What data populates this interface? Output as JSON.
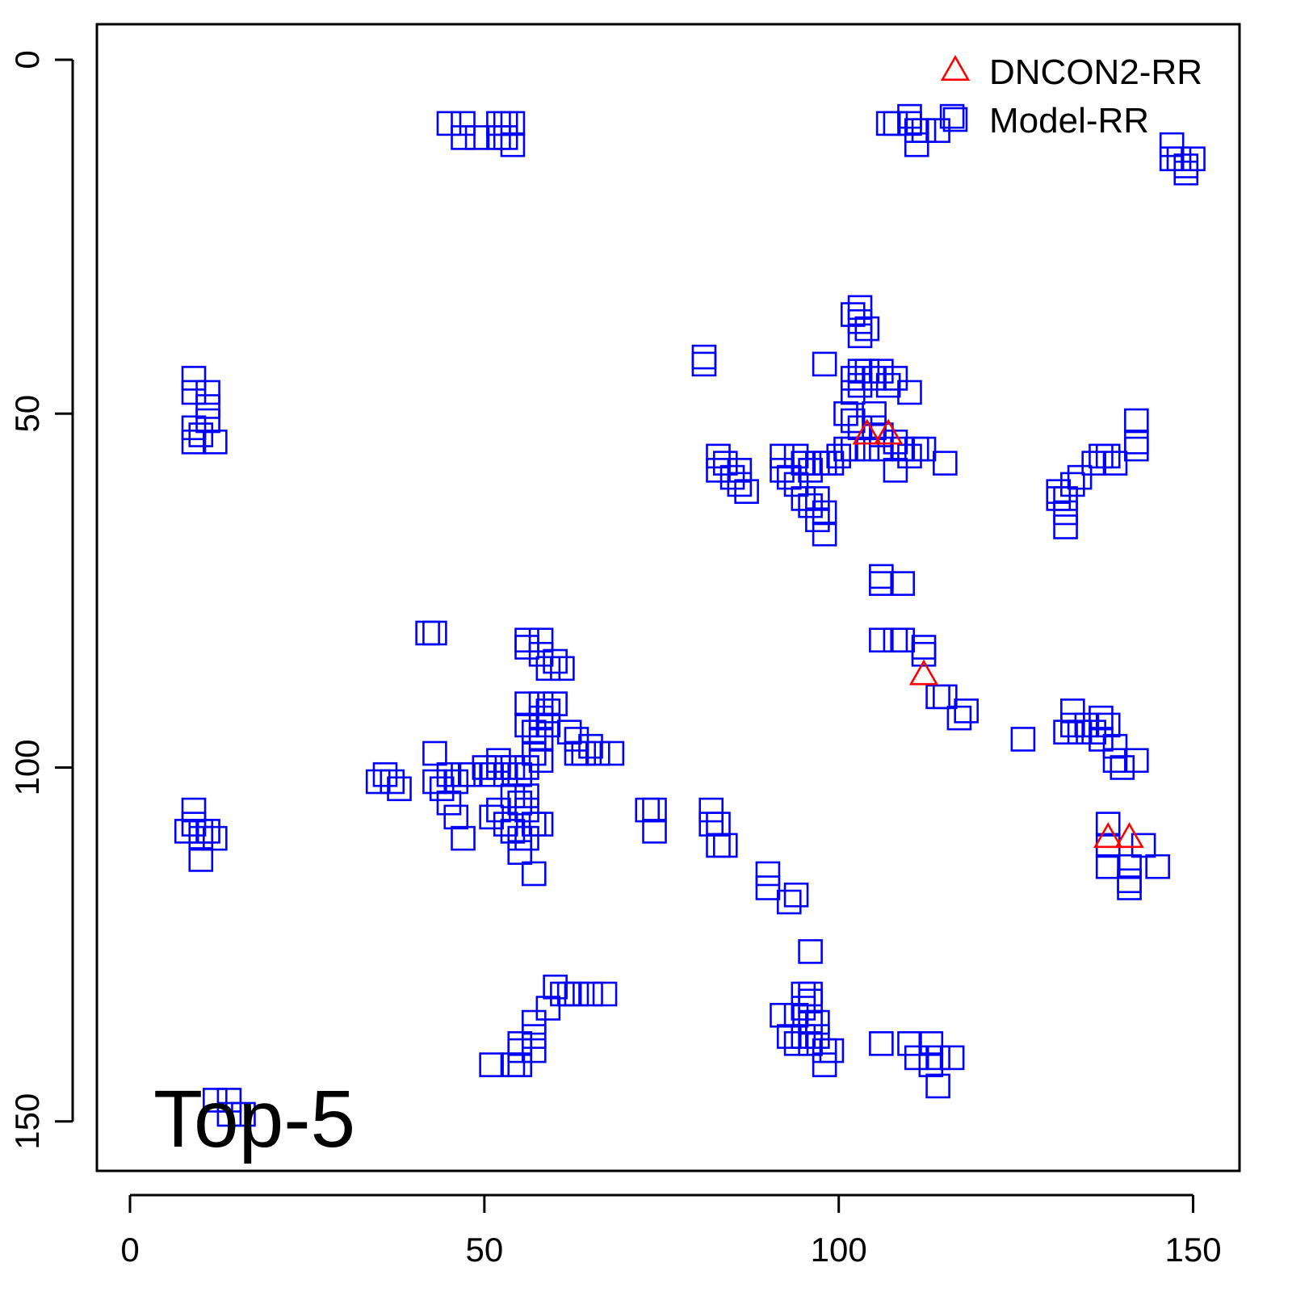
{
  "chart_data": {
    "type": "scatter",
    "title": "",
    "xlabel": "",
    "ylabel": "",
    "xlim": [
      -5,
      157
    ],
    "ylim": [
      155,
      -5
    ],
    "y_axis_reversed": true,
    "x_ticks": [
      0,
      50,
      100,
      150
    ],
    "y_ticks": [
      0,
      50,
      100,
      150
    ],
    "x_tick_labels": [
      "0",
      "50",
      "100",
      "150"
    ],
    "y_tick_labels": [
      "0",
      "50",
      "100",
      "150"
    ],
    "grid": false,
    "legend_position": "top-right",
    "annotation": "Top-5",
    "series": [
      {
        "name": "DNCON2-RR",
        "marker": "triangle",
        "color": "#ff0000",
        "points": [
          [
            104,
            53
          ],
          [
            107,
            53
          ],
          [
            112,
            87
          ],
          [
            138,
            110
          ],
          [
            141,
            110
          ]
        ]
      },
      {
        "name": "Model-RR",
        "marker": "square",
        "color": "#0000ff",
        "points": [
          [
            45,
            9
          ],
          [
            47,
            9
          ],
          [
            52,
            9
          ],
          [
            53,
            9
          ],
          [
            54,
            9
          ],
          [
            47,
            11
          ],
          [
            49,
            11
          ],
          [
            52,
            11
          ],
          [
            53,
            11
          ],
          [
            54,
            12
          ],
          [
            107,
            9
          ],
          [
            108,
            9
          ],
          [
            110,
            9
          ],
          [
            110,
            8
          ],
          [
            111,
            10
          ],
          [
            111,
            12
          ],
          [
            112,
            10
          ],
          [
            114,
            10
          ],
          [
            116,
            8
          ],
          [
            147,
            12
          ],
          [
            147,
            14
          ],
          [
            148,
            14
          ],
          [
            149,
            15
          ],
          [
            150,
            14
          ],
          [
            149,
            16
          ],
          [
            9,
            45
          ],
          [
            9,
            47
          ],
          [
            11,
            47
          ],
          [
            11,
            49
          ],
          [
            11,
            51
          ],
          [
            9,
            52
          ],
          [
            9,
            54
          ],
          [
            10,
            53
          ],
          [
            12,
            54
          ],
          [
            103,
            35
          ],
          [
            102,
            36
          ],
          [
            103,
            37
          ],
          [
            104,
            38
          ],
          [
            103,
            39
          ],
          [
            81,
            42
          ],
          [
            81,
            43
          ],
          [
            98,
            43
          ],
          [
            102,
            45
          ],
          [
            103,
            44
          ],
          [
            104,
            44
          ],
          [
            105,
            45
          ],
          [
            106,
            44
          ],
          [
            107,
            46
          ],
          [
            108,
            45
          ],
          [
            102,
            47
          ],
          [
            103,
            46
          ],
          [
            110,
            47
          ],
          [
            101,
            50
          ],
          [
            102,
            51
          ],
          [
            103,
            52
          ],
          [
            105,
            52
          ],
          [
            102,
            55
          ],
          [
            104,
            55
          ],
          [
            106,
            55
          ],
          [
            108,
            54
          ],
          [
            109,
            55
          ],
          [
            110,
            56
          ],
          [
            111,
            55
          ],
          [
            112,
            55
          ],
          [
            115,
            57
          ],
          [
            108,
            58
          ],
          [
            106,
            53
          ],
          [
            105,
            50
          ],
          [
            92,
            56
          ],
          [
            92,
            58
          ],
          [
            93,
            59
          ],
          [
            94,
            56
          ],
          [
            95,
            57
          ],
          [
            96,
            58
          ],
          [
            97,
            57
          ],
          [
            98,
            57
          ],
          [
            99,
            57
          ],
          [
            100,
            56
          ],
          [
            101,
            55
          ],
          [
            94,
            60
          ],
          [
            95,
            62
          ],
          [
            96,
            63
          ],
          [
            97,
            62
          ],
          [
            97,
            65
          ],
          [
            98,
            64
          ],
          [
            98,
            67
          ],
          [
            83,
            56
          ],
          [
            83,
            58
          ],
          [
            84,
            57
          ],
          [
            85,
            59
          ],
          [
            86,
            58
          ],
          [
            86,
            60
          ],
          [
            87,
            61
          ],
          [
            131,
            61
          ],
          [
            131,
            62
          ],
          [
            132,
            62
          ],
          [
            132,
            64
          ],
          [
            132,
            66
          ],
          [
            133,
            60
          ],
          [
            134,
            59
          ],
          [
            136,
            57
          ],
          [
            137,
            56
          ],
          [
            138,
            56
          ],
          [
            139,
            57
          ],
          [
            142,
            51
          ],
          [
            142,
            54
          ],
          [
            142,
            55
          ],
          [
            106,
            73
          ],
          [
            106,
            74
          ],
          [
            109,
            74
          ],
          [
            106,
            82
          ],
          [
            108,
            82
          ],
          [
            109,
            82
          ],
          [
            112,
            83
          ],
          [
            112,
            84
          ],
          [
            114,
            90
          ],
          [
            115,
            90
          ],
          [
            117,
            93
          ],
          [
            118,
            92
          ],
          [
            126,
            96
          ],
          [
            132,
            95
          ],
          [
            133,
            94
          ],
          [
            133,
            92
          ],
          [
            134,
            95
          ],
          [
            135,
            94
          ],
          [
            136,
            95
          ],
          [
            137,
            93
          ],
          [
            137,
            96
          ],
          [
            138,
            94
          ],
          [
            139,
            97
          ],
          [
            139,
            99
          ],
          [
            140,
            100
          ],
          [
            142,
            99
          ],
          [
            42,
            81
          ],
          [
            43,
            81
          ],
          [
            56,
            82
          ],
          [
            56,
            83
          ],
          [
            58,
            82
          ],
          [
            58,
            84
          ],
          [
            59,
            86
          ],
          [
            60,
            85
          ],
          [
            61,
            86
          ],
          [
            56,
            91
          ],
          [
            58,
            91
          ],
          [
            59,
            92
          ],
          [
            60,
            91
          ],
          [
            58,
            93
          ],
          [
            59,
            94
          ],
          [
            56,
            94
          ],
          [
            57,
            95
          ],
          [
            58,
            96
          ],
          [
            57,
            98
          ],
          [
            58,
            99
          ],
          [
            62,
            95
          ],
          [
            63,
            96
          ],
          [
            63,
            98
          ],
          [
            64,
            98
          ],
          [
            65,
            97
          ],
          [
            66,
            98
          ],
          [
            68,
            98
          ],
          [
            43,
            98
          ],
          [
            43,
            102
          ],
          [
            44,
            103
          ],
          [
            45,
            101
          ],
          [
            46,
            102
          ],
          [
            47,
            101
          ],
          [
            48,
            101
          ],
          [
            50,
            100
          ],
          [
            51,
            101
          ],
          [
            52,
            100
          ],
          [
            53,
            101
          ],
          [
            54,
            100
          ],
          [
            55,
            101
          ],
          [
            56,
            100
          ],
          [
            52,
            99
          ],
          [
            54,
            104
          ],
          [
            55,
            105
          ],
          [
            56,
            104
          ],
          [
            56,
            106
          ],
          [
            57,
            108
          ],
          [
            51,
            107
          ],
          [
            52,
            106
          ],
          [
            53,
            108
          ],
          [
            54,
            109
          ],
          [
            55,
            110
          ],
          [
            56,
            110
          ],
          [
            58,
            108
          ],
          [
            55,
            112
          ],
          [
            57,
            115
          ],
          [
            45,
            105
          ],
          [
            46,
            107
          ],
          [
            47,
            110
          ],
          [
            35,
            102
          ],
          [
            36,
            101
          ],
          [
            37,
            102
          ],
          [
            38,
            103
          ],
          [
            9,
            106
          ],
          [
            9,
            108
          ],
          [
            8,
            109
          ],
          [
            10,
            109
          ],
          [
            10,
            110
          ],
          [
            11,
            109
          ],
          [
            12,
            110
          ],
          [
            10,
            113
          ],
          [
            73,
            106
          ],
          [
            74,
            106
          ],
          [
            74,
            109
          ],
          [
            82,
            106
          ],
          [
            82,
            108
          ],
          [
            83,
            108
          ],
          [
            83,
            111
          ],
          [
            84,
            111
          ],
          [
            90,
            115
          ],
          [
            90,
            117
          ],
          [
            93,
            119
          ],
          [
            94,
            118
          ],
          [
            96,
            126
          ],
          [
            60,
            131
          ],
          [
            61,
            132
          ],
          [
            62,
            132
          ],
          [
            63,
            132
          ],
          [
            65,
            132
          ],
          [
            67,
            132
          ],
          [
            59,
            134
          ],
          [
            57,
            136
          ],
          [
            57,
            138
          ],
          [
            55,
            139
          ],
          [
            55,
            140
          ],
          [
            57,
            140
          ],
          [
            51,
            142
          ],
          [
            54,
            142
          ],
          [
            55,
            142
          ],
          [
            92,
            135
          ],
          [
            94,
            135
          ],
          [
            95,
            134
          ],
          [
            95,
            132
          ],
          [
            96,
            133
          ],
          [
            96,
            136
          ],
          [
            97,
            136
          ],
          [
            97,
            138
          ],
          [
            95,
            138
          ],
          [
            93,
            138
          ],
          [
            94,
            139
          ],
          [
            96,
            139
          ],
          [
            98,
            140
          ],
          [
            98,
            142
          ],
          [
            99,
            140
          ],
          [
            96,
            132
          ],
          [
            106,
            139
          ],
          [
            110,
            139
          ],
          [
            111,
            141
          ],
          [
            113,
            139
          ],
          [
            113,
            142
          ],
          [
            114,
            141
          ],
          [
            116,
            141
          ],
          [
            114,
            145
          ],
          [
            138,
            108
          ],
          [
            138,
            111
          ],
          [
            138,
            114
          ],
          [
            141,
            114
          ],
          [
            141,
            116
          ],
          [
            141,
            117
          ],
          [
            143,
            111
          ],
          [
            145,
            114
          ],
          [
            12,
            147
          ],
          [
            14,
            147
          ],
          [
            14,
            149
          ],
          [
            16,
            149
          ]
        ]
      }
    ]
  }
}
